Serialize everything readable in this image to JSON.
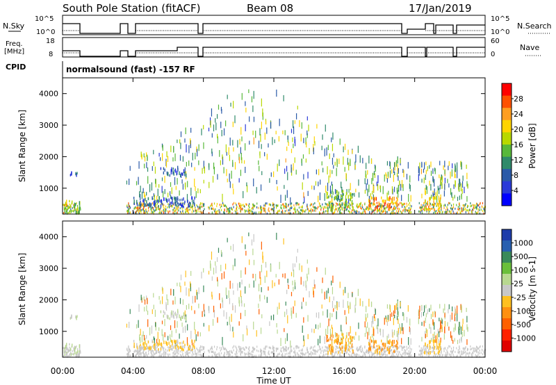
{
  "header": {
    "station": "South Pole Station (fitACF)",
    "beam": "Beam 08",
    "date": "17/Jan/2019"
  },
  "top_panels": {
    "nsky_label": "N.Sky",
    "nsearch_label": "N.Search",
    "noise_ticks": [
      "10^5",
      "10^0"
    ],
    "freq_label_1": "Freq.",
    "freq_label_2": "[MHz]",
    "freq_ticks": [
      "18",
      "8"
    ],
    "nave_label": "Nave",
    "nave_ticks": [
      "60",
      "0"
    ],
    "cpid_label": "CPID",
    "cpid_text": "normalsound (fast) -157 RF"
  },
  "x_axis": {
    "label": "Time UT",
    "ticks": [
      "00:00",
      "04:00",
      "08:00",
      "12:00",
      "16:00",
      "20:00",
      "00:00"
    ]
  },
  "power_panel": {
    "ylabel": "Slant Range [km]",
    "yticks": [
      "4000",
      "3000",
      "2000",
      "1000"
    ],
    "colorbar_label": "Power [dB]",
    "colorbar_ticks": [
      "28",
      "24",
      "20",
      "16",
      "12",
      "8",
      "4"
    ],
    "colorbar_colors": [
      "#ff0000",
      "#ff5000",
      "#ff9e20",
      "#ffd400",
      "#b8d800",
      "#58b83a",
      "#2f8a6a",
      "#2a5aa8",
      "#2a3ad8",
      "#0000ff"
    ]
  },
  "velocity_panel": {
    "ylabel": "Slant Range [km]",
    "yticks": [
      "4000",
      "3000",
      "2000",
      "1000"
    ],
    "colorbar_label": "Velocity [m s-1]",
    "colorbar_ticks": [
      "1000",
      "500",
      "100",
      "25",
      "-25",
      "-100",
      "-500",
      "-1000"
    ],
    "colorbar_colors": [
      "#1e3caa",
      "#2860b0",
      "#3a8a5a",
      "#6abf3a",
      "#b8d890",
      "#c8c8c8",
      "#ffc020",
      "#ff9010",
      "#ff6000",
      "#ff2000",
      "#e00000"
    ]
  },
  "chart_data": [
    {
      "type": "heatmap",
      "title": "Power",
      "xlabel": "Time UT",
      "ylabel": "Slant Range [km]",
      "xlim": [
        "00:00",
        "24:00"
      ],
      "ylim": [
        180,
        4500
      ],
      "colorbar": {
        "label": "Power [dB]",
        "range": [
          0,
          30
        ]
      },
      "features": [
        {
          "t_start": 0.0,
          "t_end": 1.0,
          "range_km": [
            180,
            600
          ],
          "power_db": 14
        },
        {
          "t_start": 0.3,
          "t_end": 0.8,
          "range_km": [
            1400,
            1600
          ],
          "power_db": 6
        },
        {
          "t_start": 4.0,
          "t_end": 7.5,
          "range_km": [
            400,
            700
          ],
          "power_db": 6
        },
        {
          "t_start": 5.5,
          "t_end": 7.0,
          "range_km": [
            1400,
            1650
          ],
          "power_db": 6
        },
        {
          "t_start": 15.0,
          "t_end": 16.5,
          "range_km": [
            300,
            900
          ],
          "power_db": 14
        },
        {
          "t_start": 17.2,
          "t_end": 19.0,
          "range_km": [
            300,
            700
          ],
          "power_db": 24
        },
        {
          "t_start": 20.5,
          "t_end": 21.5,
          "range_km": [
            300,
            700
          ],
          "power_db": 20
        }
      ]
    },
    {
      "type": "heatmap",
      "title": "Velocity",
      "xlabel": "Time UT",
      "ylabel": "Slant Range [km]",
      "xlim": [
        "00:00",
        "24:00"
      ],
      "ylim": [
        180,
        4500
      ],
      "colorbar": {
        "label": "Velocity [m s-1]",
        "range": [
          -1000,
          1000
        ]
      },
      "features": [
        {
          "t_start": 4.0,
          "t_end": 7.5,
          "range_km": [
            400,
            700
          ],
          "velocity": -150
        },
        {
          "t_start": 15.0,
          "t_end": 16.5,
          "range_km": [
            300,
            900
          ],
          "velocity": -300
        },
        {
          "t_start": 17.2,
          "t_end": 19.0,
          "range_km": [
            300,
            700
          ],
          "velocity": -300
        },
        {
          "t_start": 20.5,
          "t_end": 21.5,
          "range_km": [
            300,
            700
          ],
          "velocity": -200
        }
      ]
    }
  ]
}
